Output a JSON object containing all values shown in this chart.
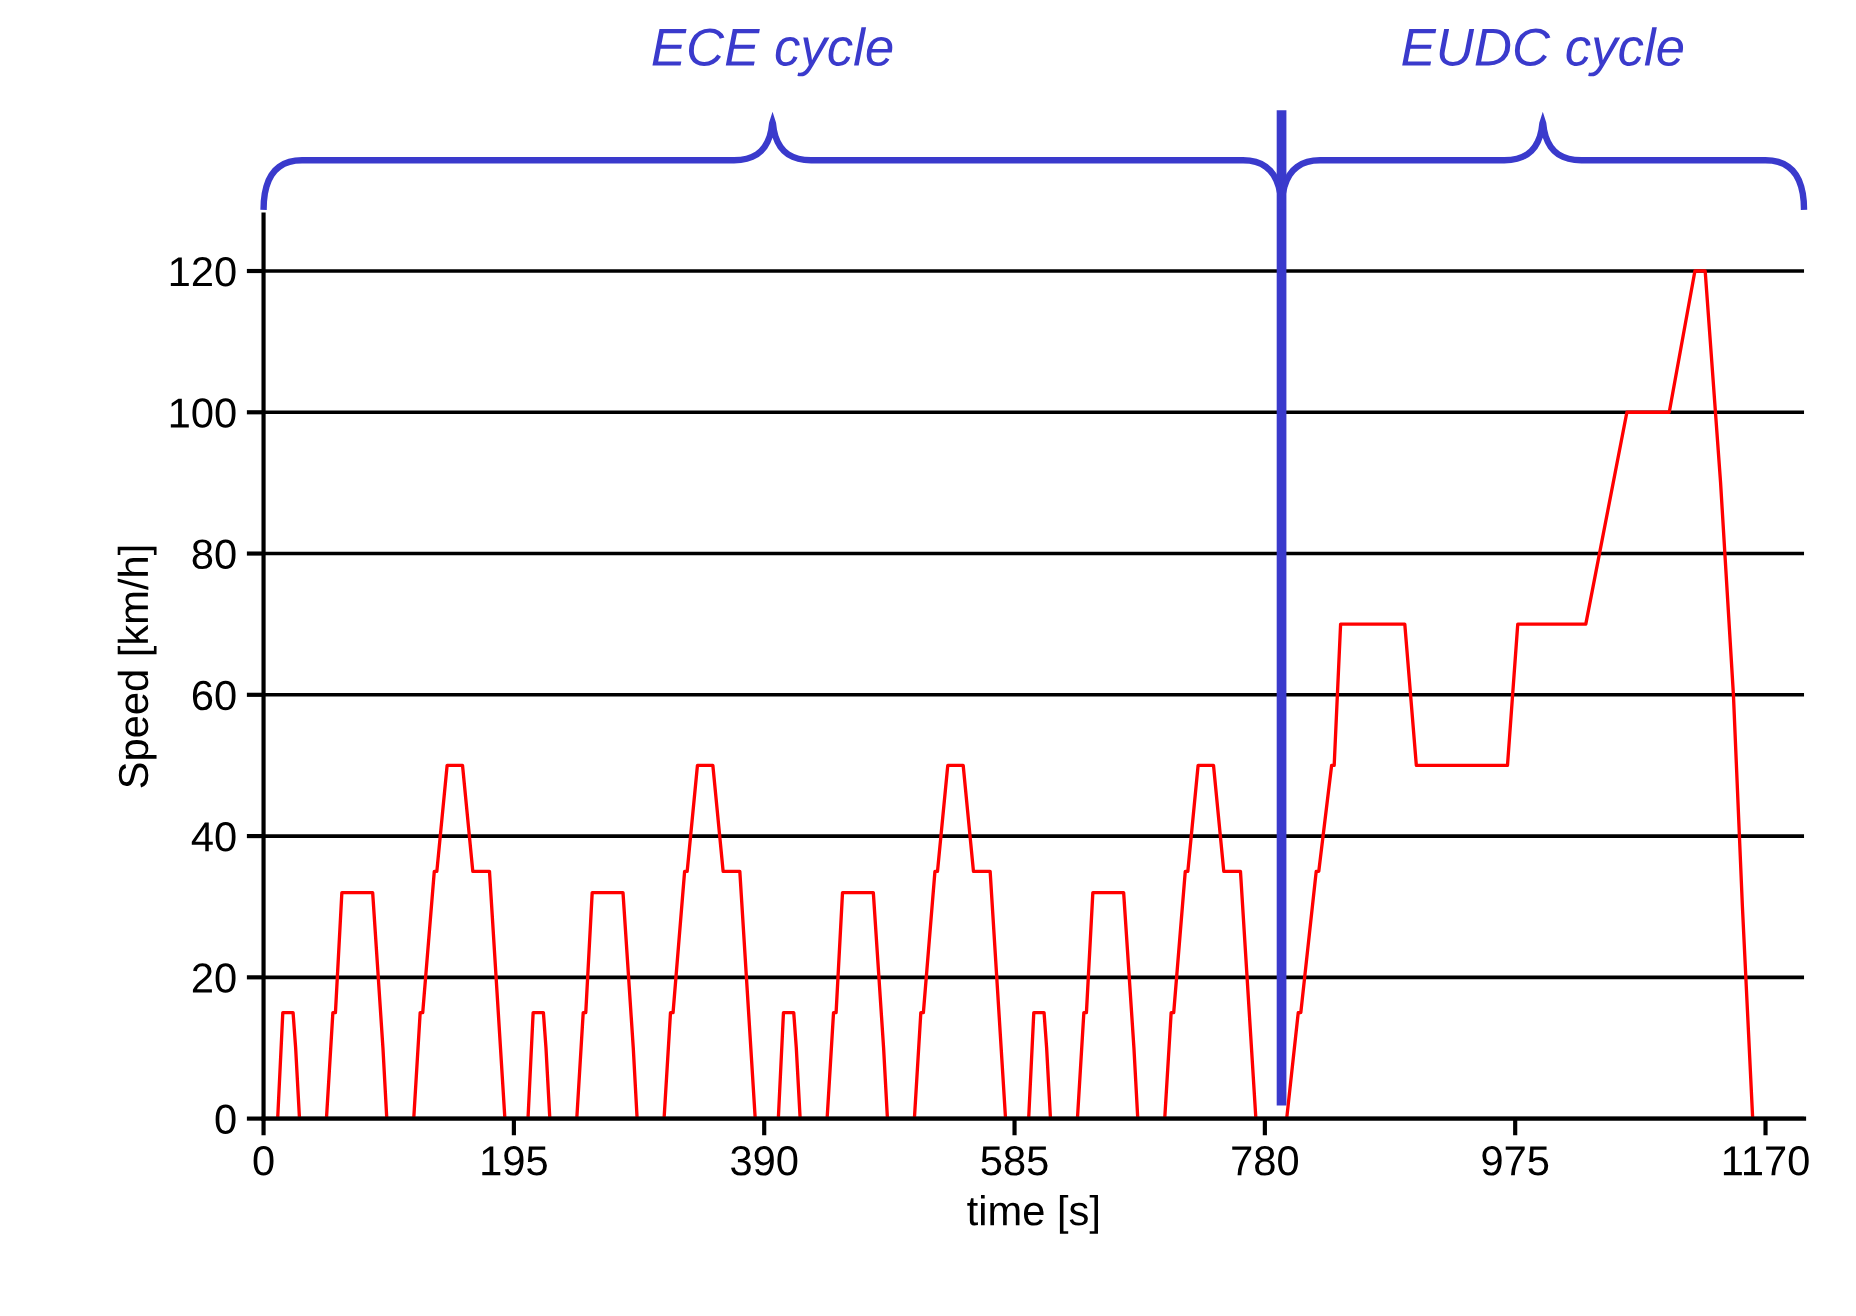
{
  "chart_data": {
    "type": "line",
    "xlabel": "time [s]",
    "ylabel": "Speed [km/h]",
    "xlim": [
      0,
      1200
    ],
    "xticks": [
      0,
      195,
      390,
      585,
      780,
      975,
      1170
    ],
    "ylim": [
      0,
      128
    ],
    "yticks": [
      0,
      20,
      40,
      60,
      80,
      100,
      120
    ],
    "grid": "y",
    "marker": "none",
    "line_style": "solid",
    "series": [
      {
        "color": "#ff0000",
        "x": [
          0,
          11,
          15,
          23,
          25,
          28,
          49,
          54,
          56,
          61,
          85,
          93,
          96,
          117,
          122,
          124,
          133,
          135,
          143,
          155,
          163,
          176,
          188,
          195,
          206,
          210,
          218,
          220,
          223,
          244,
          249,
          251,
          256,
          280,
          288,
          291,
          312,
          317,
          319,
          328,
          330,
          338,
          350,
          358,
          371,
          383,
          390,
          401,
          405,
          413,
          415,
          418,
          439,
          444,
          446,
          451,
          475,
          483,
          486,
          507,
          512,
          514,
          523,
          525,
          533,
          545,
          553,
          566,
          578,
          585,
          596,
          600,
          608,
          610,
          613,
          634,
          639,
          641,
          646,
          670,
          678,
          681,
          702,
          707,
          709,
          718,
          720,
          728,
          740,
          748,
          761,
          773,
          797,
          806,
          808,
          820,
          822,
          832,
          834,
          839,
          889,
          898,
          969,
          977,
          1030,
          1062,
          1095,
          1115,
          1123,
          1135,
          1145,
          1152,
          1160,
          1200
        ],
        "values": [
          0,
          0,
          15,
          15,
          10,
          0,
          0,
          15,
          15,
          32,
          32,
          10,
          0,
          0,
          15,
          15,
          35,
          35,
          50,
          50,
          35,
          35,
          0,
          0,
          0,
          15,
          15,
          10,
          0,
          0,
          15,
          15,
          32,
          32,
          10,
          0,
          0,
          15,
          15,
          35,
          35,
          50,
          50,
          35,
          35,
          0,
          0,
          0,
          15,
          15,
          10,
          0,
          0,
          15,
          15,
          32,
          32,
          10,
          0,
          0,
          15,
          15,
          35,
          35,
          50,
          50,
          35,
          35,
          0,
          0,
          0,
          15,
          15,
          10,
          0,
          0,
          15,
          15,
          32,
          32,
          10,
          0,
          0,
          15,
          15,
          35,
          35,
          50,
          50,
          35,
          35,
          0,
          0,
          15,
          15,
          35,
          35,
          50,
          50,
          70,
          70,
          50,
          50,
          70,
          70,
          100,
          100,
          120,
          120,
          90,
          60,
          30,
          0,
          0
        ]
      }
    ],
    "ref_lines": [
      {
        "axis": "x",
        "value": 793,
        "color": "#3a3acc",
        "line_style": "solid"
      }
    ],
    "annotations": [
      "ECE cycle",
      "EUDC cycle"
    ]
  }
}
